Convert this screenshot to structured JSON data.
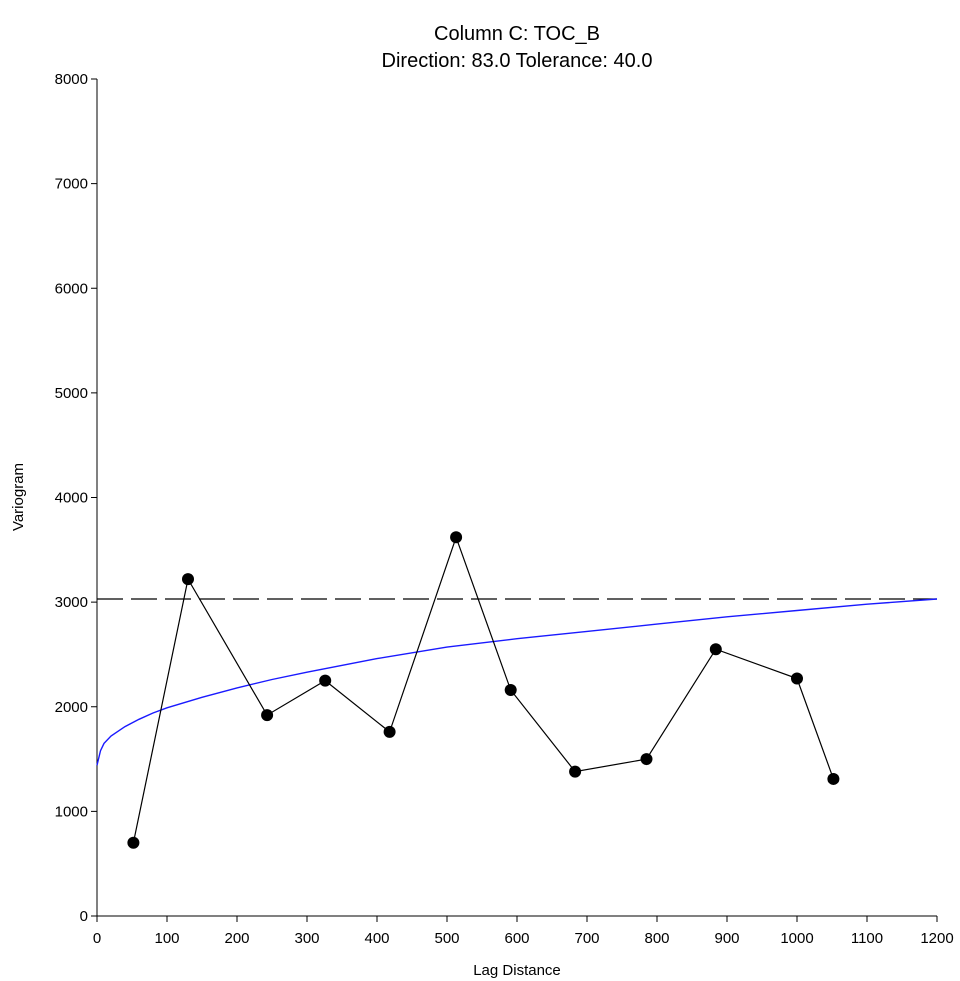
{
  "chart_data": {
    "type": "line",
    "title": "Column C:  TOC_B",
    "subtitle": "Direction: 83.0   Tolerance: 40.0",
    "xlabel": "Lag Distance",
    "ylabel": "Variogram",
    "xlim": [
      0,
      1200
    ],
    "ylim": [
      0,
      8000
    ],
    "x_ticks": [
      0,
      100,
      200,
      300,
      400,
      500,
      600,
      700,
      800,
      900,
      1000,
      1100,
      1200
    ],
    "y_ticks": [
      0,
      1000,
      2000,
      3000,
      4000,
      5000,
      6000,
      7000,
      8000
    ],
    "grid": false,
    "legend": "none",
    "series": [
      {
        "kind": "experimental",
        "color": "#000000",
        "marker": "filled-circle",
        "x": [
          52,
          130,
          243,
          326,
          418,
          513,
          591,
          683,
          785,
          884,
          1000,
          1052
        ],
        "y": [
          700,
          3220,
          1920,
          2250,
          1760,
          3620,
          2160,
          1380,
          1500,
          2550,
          2270,
          1310
        ]
      },
      {
        "kind": "model",
        "color": "#1a1aff",
        "marker": "none",
        "x": [
          0,
          5,
          10,
          20,
          40,
          60,
          80,
          100,
          150,
          200,
          250,
          300,
          400,
          500,
          600,
          700,
          800,
          900,
          1000,
          1100,
          1200
        ],
        "y": [
          1440,
          1580,
          1650,
          1720,
          1810,
          1880,
          1940,
          1990,
          2090,
          2180,
          2260,
          2330,
          2460,
          2570,
          2650,
          2720,
          2790,
          2860,
          2920,
          2980,
          3030
        ]
      }
    ],
    "sill": {
      "y": 3030,
      "color": "#000000",
      "style": "dashed"
    }
  }
}
